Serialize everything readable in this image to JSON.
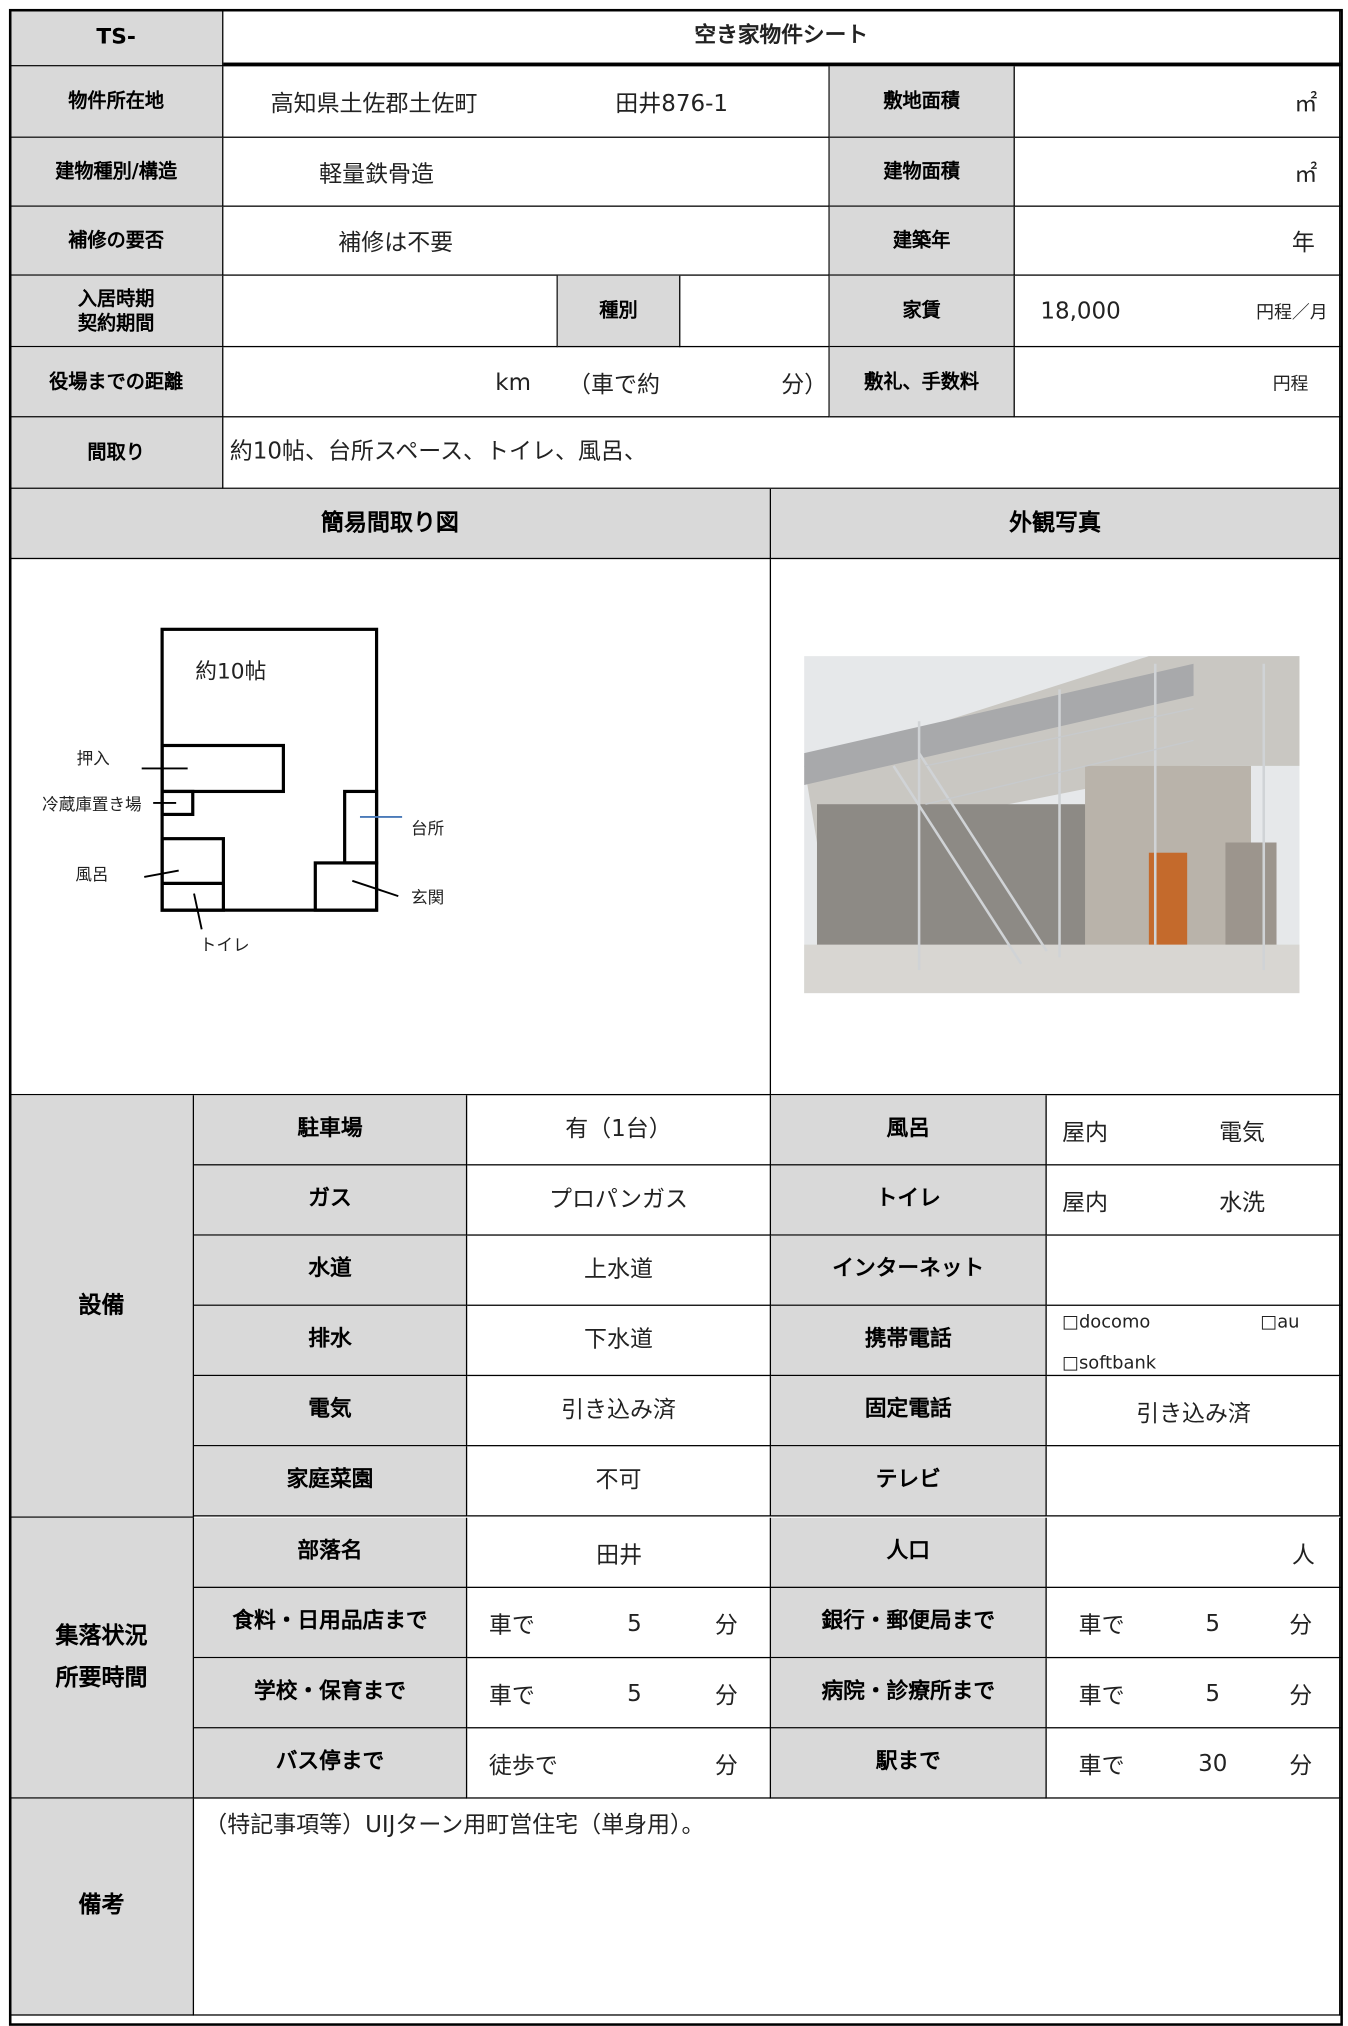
{
  "header": {
    "code": "TS-",
    "title": "空き家物件シート"
  },
  "property": {
    "location": {
      "label": "物件所在地",
      "value": [
        "高知県土佐郡土佐町",
        "田井876-1"
      ]
    },
    "site_area": {
      "label": "敷地面積",
      "unit": "㎡"
    },
    "structure": {
      "label": "建物種別/構造",
      "value": "軽量鉄骨造"
    },
    "building_area": {
      "label": "建物面積",
      "unit": "㎡"
    },
    "repair": {
      "label": "補修の要否",
      "value": "補修は不要"
    },
    "built_year": {
      "label": "建築年",
      "unit": "年"
    },
    "move_in": {
      "label": [
        "入居時期",
        "契約期間"
      ]
    },
    "kind": {
      "label": "種別"
    },
    "rent": {
      "label": "家賃",
      "value": "18,000",
      "unit": "円程／月"
    },
    "distance": {
      "label": "役場までの距離",
      "parts": [
        "km",
        "（車で約",
        "分）"
      ]
    },
    "fees": {
      "label": "敷礼、手数料",
      "unit": "円程"
    },
    "layout": {
      "label": "間取り",
      "value": "約10帖、台所スペース、トイレ、風呂、"
    }
  },
  "floor_plan": {
    "title": "簡易間取り図",
    "labels": [
      "約10帖",
      "押入",
      "冷蔵庫置き場",
      "台所",
      "風呂",
      "玄関",
      "トイレ"
    ]
  },
  "photo": {
    "title": "外観写真"
  },
  "facilities": {
    "label": "設備",
    "rows": [
      {
        "item": "駐車場",
        "value": "有（1台）",
        "item2": "風呂",
        "value2": [
          "屋内",
          "電気"
        ]
      },
      {
        "item": "ガス",
        "value": "プロパンガス",
        "item2": "トイレ",
        "value2": [
          "屋内",
          "水洗"
        ]
      },
      {
        "item": "水道",
        "value": "上水道",
        "item2": "インターネット"
      },
      {
        "item": "排水",
        "value": "下水道",
        "item2": "携帯電話",
        "value2": [
          "□docomo",
          "□au",
          "□softbank"
        ]
      },
      {
        "item": "電気",
        "value": "引き込み済",
        "item2": "固定電話",
        "value2": [
          "引き込み済"
        ]
      },
      {
        "item": "家庭菜園",
        "value": "不可",
        "item2": "テレビ"
      }
    ]
  },
  "settlement": {
    "label": [
      "集落状況",
      "所要時間"
    ],
    "rows": [
      {
        "item": "部落名",
        "value": [
          "田井"
        ],
        "item2": "人口",
        "value2": [
          "人"
        ]
      },
      {
        "item": "食料・日用品店まで",
        "value": [
          "車で",
          5,
          "分"
        ],
        "item2": "銀行・郵便局まで",
        "value2": [
          "車で",
          5,
          "分"
        ]
      },
      {
        "item": "学校・保育まで",
        "value": [
          "車で",
          5,
          "分"
        ],
        "item2": "病院・診療所まで",
        "value2": [
          "車で",
          5,
          "分"
        ]
      },
      {
        "item": "バス停まで",
        "value": [
          "徒歩で",
          "分"
        ],
        "item2": "駅まで",
        "value2": [
          "車で",
          30,
          "分"
        ]
      }
    ]
  },
  "remarks": {
    "label": "備考",
    "text": "（特記事項等）UIJターン用町営住宅（単身用）。"
  }
}
